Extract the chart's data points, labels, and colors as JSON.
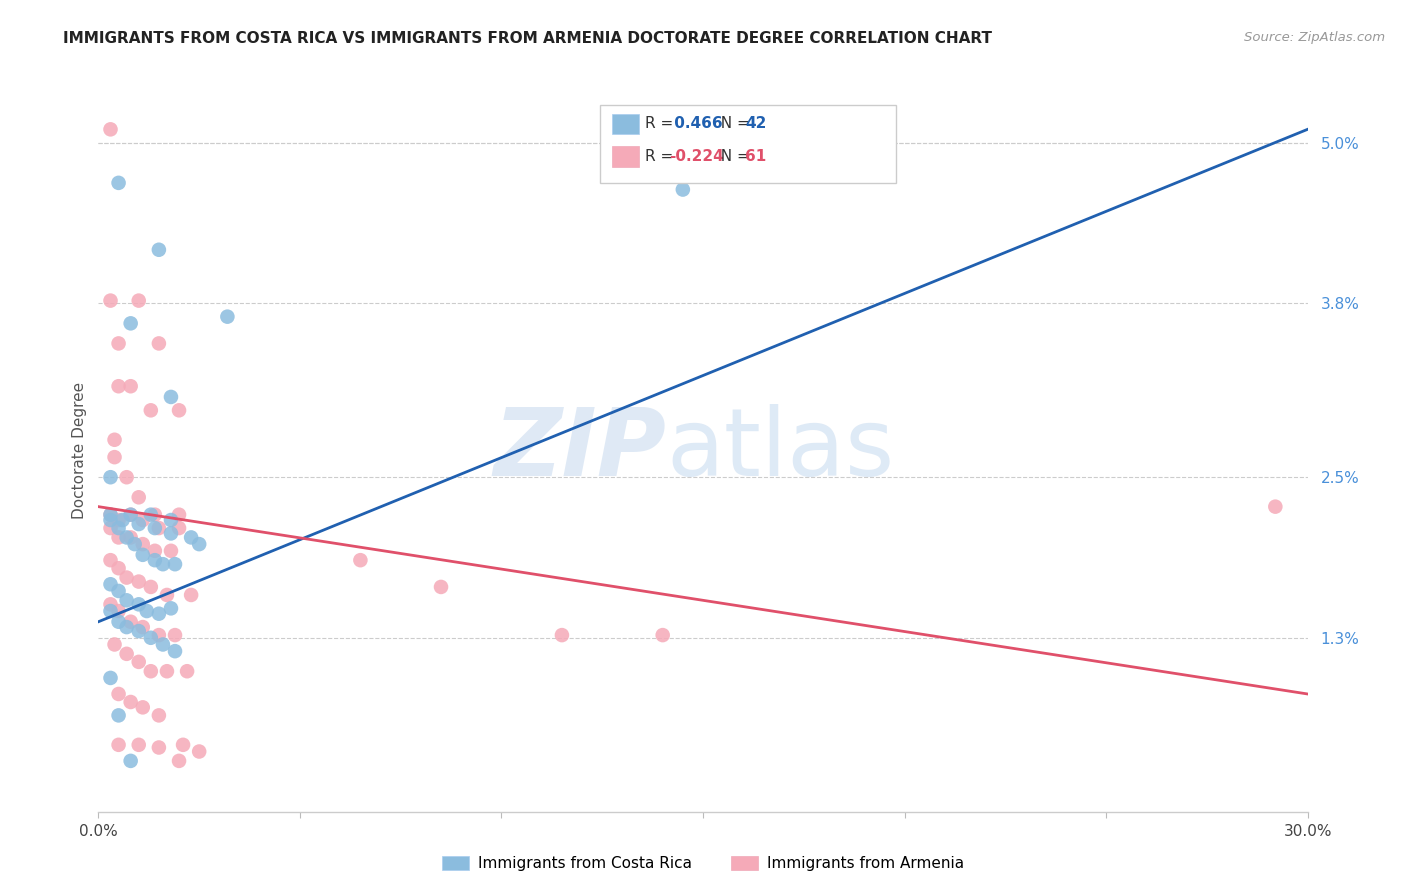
{
  "title": "IMMIGRANTS FROM COSTA RICA VS IMMIGRANTS FROM ARMENIA DOCTORATE DEGREE CORRELATION CHART",
  "source": "Source: ZipAtlas.com",
  "ylabel": "Doctorate Degree",
  "xlim": [
    0.0,
    30.0
  ],
  "ylim": [
    0.0,
    5.4
  ],
  "xticks": [
    0.0,
    5.0,
    10.0,
    15.0,
    20.0,
    25.0,
    30.0
  ],
  "xticklabels": [
    "0.0%",
    "",
    "",
    "",
    "",
    "",
    "30.0%"
  ],
  "yticks_right": [
    1.3,
    2.5,
    3.8,
    5.0
  ],
  "yticklabels_right": [
    "1.3%",
    "2.5%",
    "3.8%",
    "5.0%"
  ],
  "grid_yticks": [
    1.3,
    2.5,
    3.8,
    5.0
  ],
  "blue_label": "Immigrants from Costa Rica",
  "pink_label": "Immigrants from Armenia",
  "blue_R": "0.466",
  "blue_N": "42",
  "pink_R": "-0.224",
  "pink_N": "61",
  "blue_scatter_color": "#8bbcde",
  "pink_scatter_color": "#f5aab8",
  "blue_line_color": "#2060b0",
  "pink_line_color": "#e0506a",
  "blue_scatter_x": [
    0.5,
    1.5,
    0.8,
    1.8,
    3.2,
    0.3,
    0.8,
    1.3,
    1.8,
    2.3,
    0.3,
    0.6,
    1.0,
    1.4,
    1.8,
    0.3,
    0.5,
    0.7,
    0.9,
    1.1,
    1.4,
    1.6,
    1.9,
    0.3,
    0.5,
    0.7,
    1.0,
    1.2,
    1.5,
    1.8,
    0.3,
    0.5,
    0.7,
    1.0,
    1.3,
    1.6,
    1.9,
    0.3,
    0.5,
    0.8,
    14.5,
    2.5
  ],
  "blue_scatter_y": [
    4.7,
    4.2,
    3.65,
    3.1,
    3.7,
    2.5,
    2.22,
    2.22,
    2.18,
    2.05,
    2.22,
    2.18,
    2.15,
    2.12,
    2.08,
    2.18,
    2.12,
    2.05,
    2.0,
    1.92,
    1.88,
    1.85,
    1.85,
    1.7,
    1.65,
    1.58,
    1.55,
    1.5,
    1.48,
    1.52,
    1.5,
    1.42,
    1.38,
    1.35,
    1.3,
    1.25,
    1.2,
    1.0,
    0.72,
    0.38,
    4.65,
    2.0
  ],
  "pink_scatter_x": [
    0.3,
    0.3,
    1.0,
    1.5,
    0.5,
    0.5,
    0.8,
    1.3,
    2.0,
    0.4,
    0.4,
    0.7,
    1.0,
    1.4,
    2.0,
    0.3,
    0.5,
    0.8,
    1.1,
    1.5,
    2.0,
    0.3,
    0.5,
    0.8,
    1.1,
    1.4,
    1.8,
    0.3,
    0.5,
    0.7,
    1.0,
    1.3,
    1.7,
    2.3,
    0.3,
    0.5,
    0.8,
    1.1,
    1.5,
    1.9,
    0.4,
    0.7,
    1.0,
    1.3,
    1.7,
    2.2,
    6.5,
    8.5,
    11.5,
    14.0,
    0.5,
    0.8,
    1.1,
    1.5,
    2.1,
    0.5,
    1.0,
    1.5,
    2.0,
    2.5,
    29.2
  ],
  "pink_scatter_y": [
    5.1,
    3.82,
    3.82,
    3.5,
    3.5,
    3.18,
    3.18,
    3.0,
    3.0,
    2.78,
    2.65,
    2.5,
    2.35,
    2.22,
    2.22,
    2.22,
    2.18,
    2.22,
    2.18,
    2.12,
    2.12,
    2.12,
    2.05,
    2.05,
    2.0,
    1.95,
    1.95,
    1.88,
    1.82,
    1.75,
    1.72,
    1.68,
    1.62,
    1.62,
    1.55,
    1.5,
    1.42,
    1.38,
    1.32,
    1.32,
    1.25,
    1.18,
    1.12,
    1.05,
    1.05,
    1.05,
    1.88,
    1.68,
    1.32,
    1.32,
    0.88,
    0.82,
    0.78,
    0.72,
    0.5,
    0.5,
    0.5,
    0.48,
    0.38,
    0.45,
    2.28
  ],
  "blue_trend": [
    0.0,
    30.0,
    1.42,
    5.1
  ],
  "pink_trend": [
    0.0,
    30.0,
    2.28,
    0.88
  ]
}
